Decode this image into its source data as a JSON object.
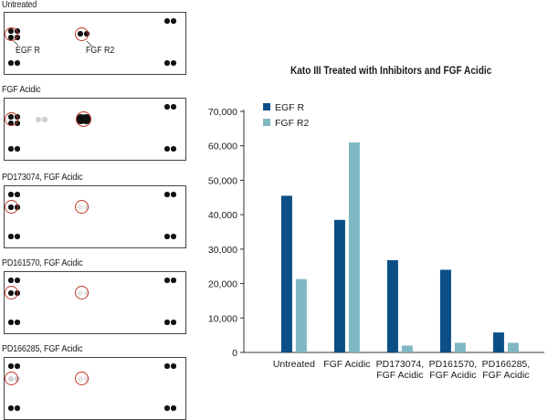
{
  "blots": [
    {
      "label": "Untreated",
      "annotations": {
        "egfr": "EGF R",
        "fgfr2": "FGF R2"
      }
    },
    {
      "label": "FGF Acidic"
    },
    {
      "label": "PD173074, FGF Acidic"
    },
    {
      "label": "PD161570, FGF Acidic"
    },
    {
      "label": "PD166285, FGF Acidic"
    }
  ],
  "chart_data": {
    "type": "bar",
    "title": "Kato III Treated with Inhibitors and FGF Acidic",
    "categories": [
      "Untreated",
      "FGF Acidic",
      "PD173074,\nFGF Acidic",
      "PD161570,\nFGF Acidic",
      "PD166285,\nFGF Acidic"
    ],
    "series": [
      {
        "name": "EGF R",
        "color": "#0b4f86",
        "values": [
          45500,
          38500,
          26800,
          24000,
          5800
        ]
      },
      {
        "name": "FGF R2",
        "color": "#7fb8c2",
        "values": [
          21300,
          61000,
          2000,
          2800,
          2800
        ]
      }
    ],
    "ylim": [
      0,
      70000
    ],
    "yticks": [
      "0",
      "10,000",
      "20,000",
      "30,000",
      "40,000",
      "50,000",
      "60,000",
      "70,000"
    ],
    "legend_position": "top-left",
    "grid": false
  }
}
